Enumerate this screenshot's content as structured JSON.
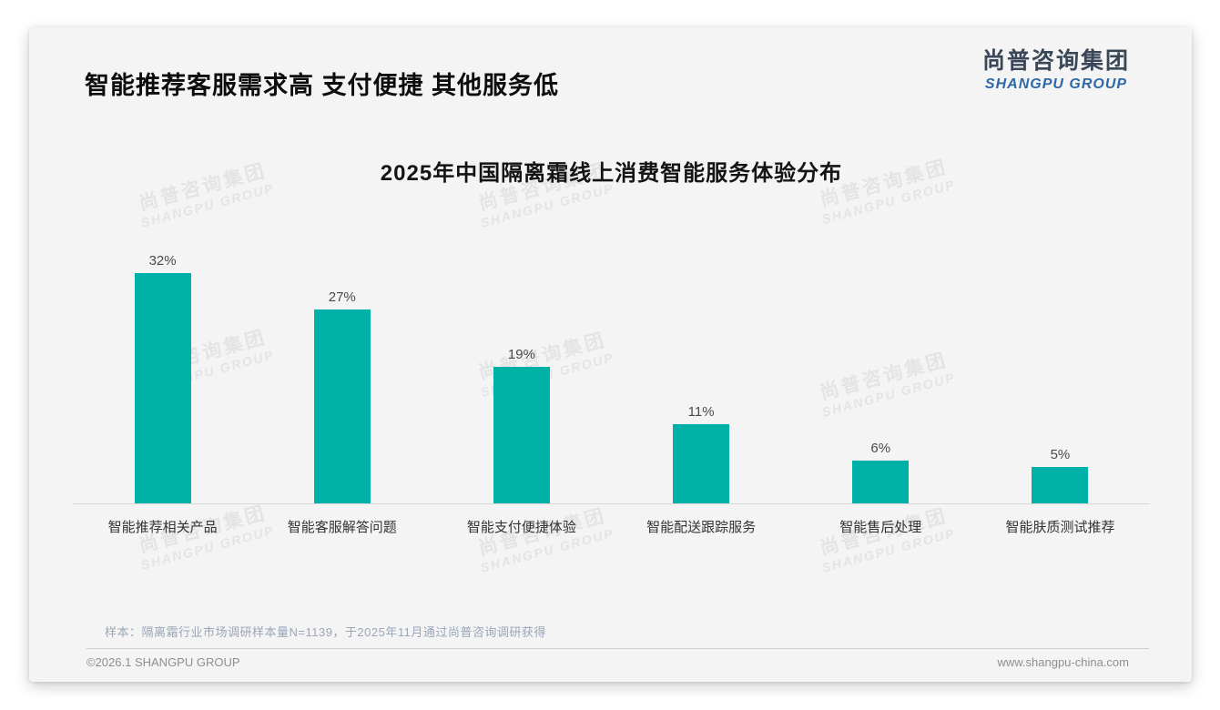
{
  "header": {
    "title": "智能推荐客服需求高 支付便捷 其他服务低",
    "logo": {
      "cn": "尚普咨询集团",
      "en": "SHANGPU GROUP"
    }
  },
  "watermark": {
    "cn": "尚普咨询集团",
    "en": "SHANGPU GROUP"
  },
  "chart_data": {
    "type": "bar",
    "title": "2025年中国隔离霜线上消费智能服务体验分布",
    "categories": [
      "智能推荐相关产品",
      "智能客服解答问题",
      "智能支付便捷体验",
      "智能配送跟踪服务",
      "智能售后处理",
      "智能肤质测试推荐"
    ],
    "values": [
      32,
      27,
      19,
      11,
      6,
      5
    ],
    "value_labels": [
      "32%",
      "27%",
      "19%",
      "11%",
      "6%",
      "5%"
    ],
    "unit": "%",
    "bar_color": "#00b1a8",
    "xlabel": "",
    "ylabel": "",
    "ylim": [
      0,
      35
    ],
    "grid": false,
    "legend": "none"
  },
  "footer": {
    "note": "样本：隔离霜行业市场调研样本量N=1139，于2025年11月通过尚普咨询调研获得",
    "copyright": "©2026.1 SHANGPU GROUP",
    "website": "www.shangpu-china.com"
  }
}
